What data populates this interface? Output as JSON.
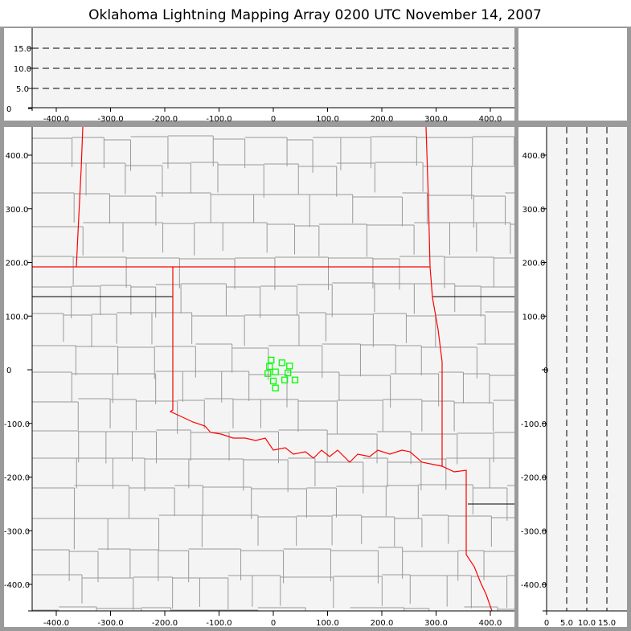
{
  "title": "Oklahoma Lightning Mapping Array   0200 UTC  November 14, 2007",
  "axes": {
    "horizontal_ticks": [
      "-400.0",
      "-300.0",
      "-200.0",
      "-100.0",
      "0",
      "100.0",
      "200.0",
      "300.0",
      "400.0"
    ],
    "horizontal_values": [
      -400,
      -300,
      -200,
      -100,
      0,
      100,
      200,
      300,
      400
    ],
    "vertical_ticks": [
      "400.0",
      "300.0",
      "200.0",
      "100.0",
      "0",
      "-100.0",
      "-200.0",
      "-300.0",
      "-400.0"
    ],
    "vertical_values": [
      400,
      300,
      200,
      100,
      0,
      -100,
      -200,
      -300,
      -400
    ],
    "altitude_ticks": [
      "0",
      "5.0",
      "10.0",
      "15.0"
    ],
    "altitude_values": [
      0,
      5,
      10,
      15
    ],
    "range_km": [
      -450,
      440
    ],
    "altitude_range_km": [
      0,
      20
    ]
  },
  "colors": {
    "state_border": "#ff0000",
    "county_border": "#999999",
    "sources": "#00ff00",
    "plot_bg": "#f4f4f4",
    "frame": "#9a9a9a"
  },
  "sources": [
    {
      "x": -4,
      "y": 18
    },
    {
      "x": 16,
      "y": 13
    },
    {
      "x": 30,
      "y": 7
    },
    {
      "x": -7,
      "y": 6
    },
    {
      "x": 4,
      "y": -4
    },
    {
      "x": 27,
      "y": -6
    },
    {
      "x": -10,
      "y": -7
    },
    {
      "x": 0,
      "y": -21
    },
    {
      "x": 21,
      "y": -19
    },
    {
      "x": 40,
      "y": -19
    },
    {
      "x": 4,
      "y": -34
    }
  ]
}
